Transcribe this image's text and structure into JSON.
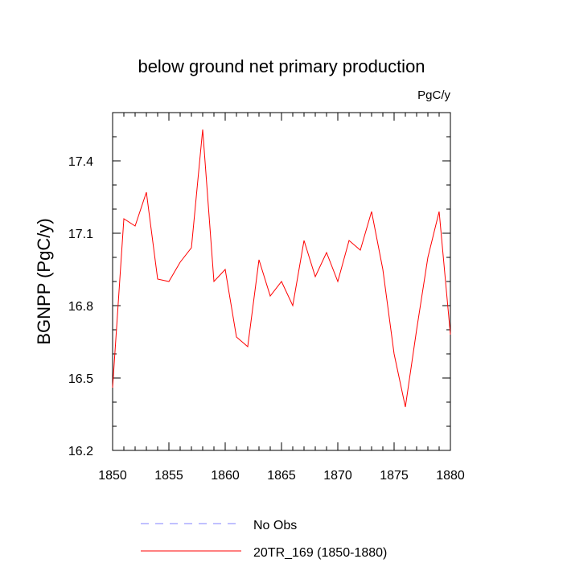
{
  "chart_data": {
    "type": "line",
    "title": "below ground net primary production",
    "units_label": "PgC/y",
    "ylabel": "BGNPP  (PgC/y)",
    "xlabel": "",
    "xlim": [
      1850,
      1880
    ],
    "ylim": [
      16.2,
      17.6
    ],
    "x_ticks": [
      1850,
      1855,
      1860,
      1865,
      1870,
      1875,
      1880
    ],
    "y_ticks": [
      16.2,
      16.5,
      16.8,
      17.1,
      17.4
    ],
    "y_tick_labels": [
      "16.2",
      "16.5",
      "16.8",
      "17.1",
      "17.4"
    ],
    "series": [
      {
        "name": "20TR_169 (1850-1880)",
        "color": "#ff0000",
        "x": [
          1850,
          1851,
          1852,
          1853,
          1854,
          1855,
          1856,
          1857,
          1858,
          1859,
          1860,
          1861,
          1862,
          1863,
          1864,
          1865,
          1866,
          1867,
          1868,
          1869,
          1870,
          1871,
          1872,
          1873,
          1874,
          1875,
          1876,
          1877,
          1878,
          1879,
          1880
        ],
        "values": [
          16.46,
          17.16,
          17.13,
          17.27,
          16.91,
          16.9,
          16.98,
          17.04,
          17.53,
          16.9,
          16.95,
          16.67,
          16.63,
          16.99,
          16.84,
          16.9,
          16.8,
          17.07,
          16.92,
          17.02,
          16.9,
          17.07,
          17.03,
          17.19,
          16.95,
          16.6,
          16.38,
          16.7,
          17.0,
          17.19,
          16.68
        ]
      }
    ],
    "legend": [
      {
        "label": "No Obs",
        "color": "#8080ff",
        "style": "dashed"
      },
      {
        "label": "20TR_169 (1850-1880)",
        "color": "#ff0000",
        "style": "solid"
      }
    ]
  }
}
